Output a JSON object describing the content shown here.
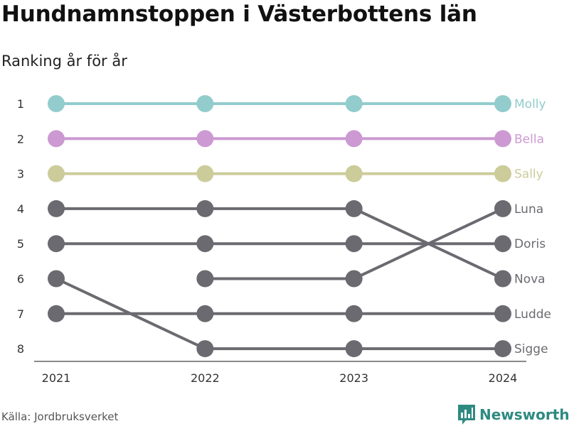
{
  "title": "Hundnamnstoppen i Västerbottens län",
  "subtitle": "Ranking år för år",
  "source": "Källa: Jordbruksverket",
  "brand": {
    "name": "Newsworthy",
    "icon": "newsworthy-logo-icon",
    "color": "#2e8a80"
  },
  "chart_data": {
    "type": "line",
    "x": [
      "2021",
      "2022",
      "2023",
      "2024"
    ],
    "y_ticks": [
      1,
      2,
      3,
      4,
      5,
      6,
      7,
      8
    ],
    "ylim": [
      1,
      8
    ],
    "y_reversed": true,
    "grid": false,
    "series": [
      {
        "name": "Molly",
        "values": [
          1,
          1,
          1,
          1
        ],
        "color": "#92cccc"
      },
      {
        "name": "Bella",
        "values": [
          2,
          2,
          2,
          2
        ],
        "color": "#cc99d2"
      },
      {
        "name": "Sally",
        "values": [
          3,
          3,
          3,
          3
        ],
        "color": "#cccc9b"
      },
      {
        "name": "Luna",
        "values": [
          null,
          6,
          6,
          4
        ],
        "color": "#6b6a70"
      },
      {
        "name": "Doris",
        "values": [
          5,
          5,
          5,
          5
        ],
        "color": "#6b6a70"
      },
      {
        "name": "Nova",
        "values": [
          4,
          4,
          4,
          6
        ],
        "color": "#6b6a70"
      },
      {
        "name": "Ludde",
        "values": [
          7,
          7,
          7,
          7
        ],
        "color": "#6b6a70"
      },
      {
        "name": "Sigge",
        "values": [
          6,
          8,
          8,
          8
        ],
        "color": "#6b6a70"
      }
    ]
  }
}
